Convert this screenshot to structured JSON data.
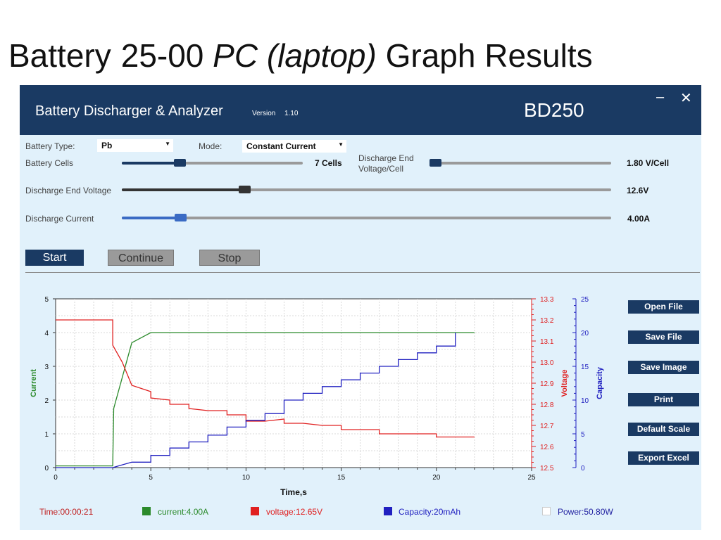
{
  "slide": {
    "title_a": "Battery",
    "title_b": "25-00",
    "title_c": "PC (laptop)",
    "title_d": "Graph Results"
  },
  "window": {
    "app_name": "Battery Discharger & Analyzer",
    "version_label": "Version",
    "version": "1.10",
    "model": "BD250",
    "minimize_glyph": "–",
    "close_glyph": "✕"
  },
  "controls": {
    "battery_type_label": "Battery Type:",
    "battery_type_value": "Pb",
    "mode_label": "Mode:",
    "mode_value": "Constant Current",
    "battery_cells_label": "Battery Cells",
    "battery_cells_value": "7 Cells",
    "battery_cells_level": 0.32,
    "discharge_end_voltage_cell_label_1": "Discharge End",
    "discharge_end_voltage_cell_label_2": "Voltage/Cell",
    "discharge_end_voltage_cell_value": "1.80 V/Cell",
    "discharge_end_voltage_cell_level": 0.0,
    "discharge_end_voltage_label": "Discharge End Voltage",
    "discharge_end_voltage_value": "12.6V",
    "discharge_end_voltage_level": 0.25,
    "discharge_current_label": "Discharge Current",
    "discharge_current_value": "4.00A",
    "discharge_current_level": 0.12
  },
  "buttons": {
    "start": "Start",
    "continue": "Continue",
    "stop": "Stop"
  },
  "side_buttons": [
    "Open File",
    "Save File",
    "Save Image",
    "Print",
    "Default Scale",
    "Export Excel"
  ],
  "status": {
    "time": "Time:00:00:21",
    "current": "current:4.00A",
    "voltage": "voltage:12.65V",
    "capacity": "Capacity:20mAh",
    "power": "Power:50.80W"
  },
  "colors": {
    "current": "#2b8a2b",
    "voltage": "#e02020",
    "capacity": "#2020c0",
    "titlebar": "#1a3a63",
    "panel": "#e1f1fb"
  },
  "chart_data": {
    "type": "line",
    "xlabel": "Time,s",
    "x_ticks": [
      "0",
      "5",
      "10",
      "15",
      "20",
      "25"
    ],
    "xlim": [
      0,
      25
    ],
    "axes": {
      "current": {
        "label": "Current",
        "range": [
          0,
          5
        ],
        "ticks": [
          "0",
          "1",
          "2",
          "3",
          "4",
          "5"
        ]
      },
      "voltage": {
        "label": "Voltage",
        "range": [
          12.5,
          13.3
        ],
        "ticks": [
          "12.5",
          "12.6",
          "12.7",
          "12.8",
          "12.9",
          "13.0",
          "13.1",
          "13.2",
          "13.3"
        ]
      },
      "capacity": {
        "label": "Capacity",
        "range": [
          0,
          25
        ],
        "ticks": [
          "0",
          "5",
          "10",
          "15",
          "20",
          "25"
        ]
      }
    },
    "series": [
      {
        "key": "current",
        "axis": "current",
        "x": [
          0,
          3,
          3.05,
          4,
          5,
          22
        ],
        "y": [
          0.05,
          0.05,
          1.75,
          3.7,
          4,
          4
        ]
      },
      {
        "key": "voltage",
        "axis": "voltage",
        "x": [
          0,
          3,
          3,
          3.5,
          4,
          5,
          5,
          6,
          6,
          7,
          7,
          8,
          9,
          9,
          10,
          10,
          11,
          12,
          12,
          13,
          14,
          15,
          15,
          16,
          17,
          17,
          18,
          19,
          20,
          20,
          22
        ],
        "y": [
          13.2,
          13.2,
          13.08,
          13.0,
          12.89,
          12.86,
          12.83,
          12.82,
          12.8,
          12.8,
          12.78,
          12.77,
          12.77,
          12.75,
          12.75,
          12.72,
          12.72,
          12.73,
          12.71,
          12.71,
          12.7,
          12.7,
          12.68,
          12.68,
          12.68,
          12.66,
          12.66,
          12.66,
          12.66,
          12.645,
          12.645
        ]
      },
      {
        "key": "capacity",
        "axis": "capacity",
        "x": [
          0,
          3,
          4,
          5,
          5,
          6,
          6,
          7,
          7,
          8,
          8,
          9,
          9,
          10,
          10,
          11,
          11,
          12,
          12,
          13,
          13,
          14,
          14,
          15,
          15,
          16,
          16,
          17,
          17,
          18,
          18,
          19,
          19,
          20,
          20,
          21,
          21
        ],
        "y": [
          0,
          0,
          0.8,
          0.8,
          1.8,
          1.8,
          2.9,
          2.9,
          3.8,
          3.8,
          4.8,
          4.8,
          6,
          6,
          7,
          7,
          8,
          8,
          10,
          10,
          11,
          11,
          12,
          12,
          13,
          13,
          14,
          14,
          15,
          15,
          16,
          16,
          17,
          17,
          18,
          18,
          20
        ]
      }
    ]
  }
}
